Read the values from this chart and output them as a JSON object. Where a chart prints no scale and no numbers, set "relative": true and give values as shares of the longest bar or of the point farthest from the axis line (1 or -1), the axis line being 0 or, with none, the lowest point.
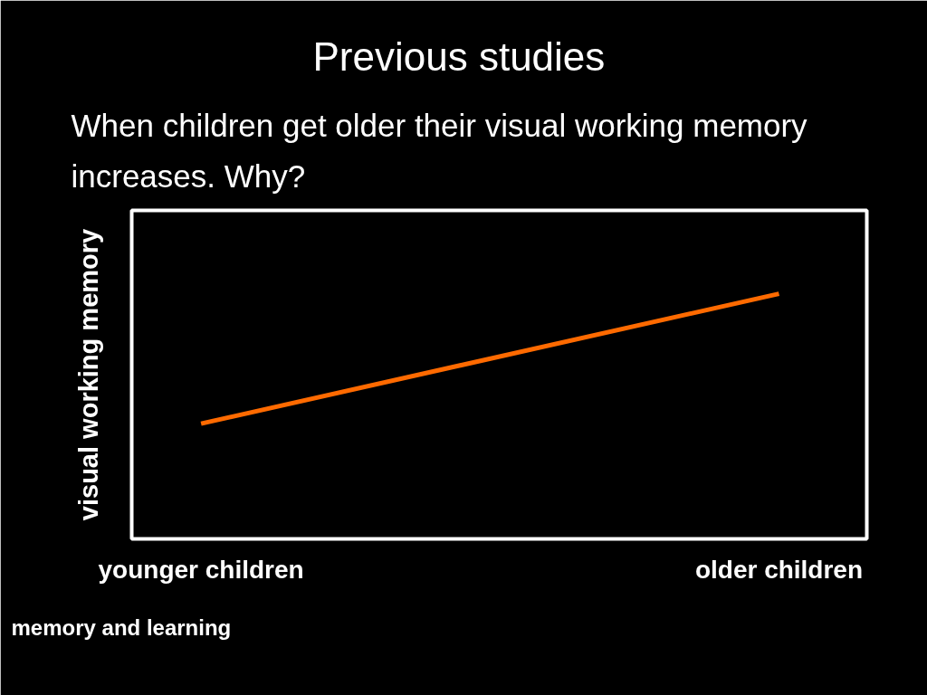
{
  "chart_data": {
    "type": "line",
    "title": "Previous studies",
    "subtitle": "When children get older their visual working memory increases. Why?",
    "ylabel": "visual working memory",
    "categories": [
      "younger children",
      "older children"
    ],
    "relative": true,
    "line_style": "solid",
    "series": [
      {
        "color": "#ff6a00",
        "values": [
          0.47,
          1
        ]
      }
    ],
    "annotations": [
      "memory and learning"
    ]
  }
}
